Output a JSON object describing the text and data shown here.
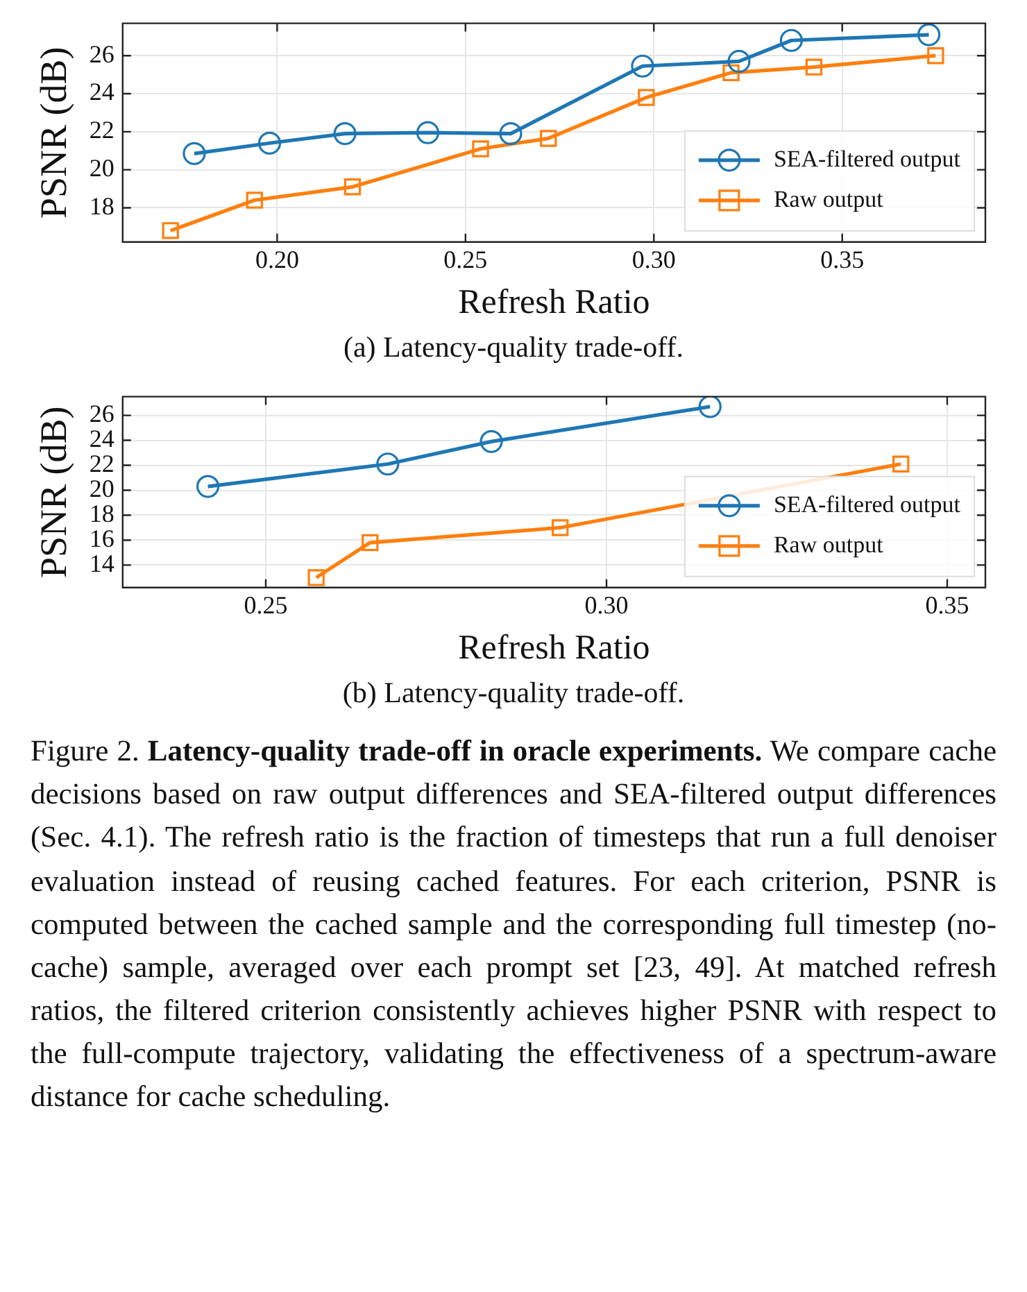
{
  "chart_data": [
    {
      "type": "line",
      "xlabel": "Refresh Ratio",
      "ylabel": "PSNR (dB)",
      "xlim": [
        0.159,
        0.388
      ],
      "ylim": [
        16.2,
        27.7
      ],
      "xticks": [
        {
          "value": 0.2,
          "label": "0.20"
        },
        {
          "value": 0.25,
          "label": "0.25"
        },
        {
          "value": 0.3,
          "label": "0.30"
        },
        {
          "value": 0.35,
          "label": "0.35"
        }
      ],
      "yticks": [
        18,
        20,
        22,
        24,
        26
      ],
      "grid": true,
      "legend": "bottom right",
      "line_style": "solid",
      "series": [
        {
          "name": "SEA-filtered output",
          "color": "#1f77b4",
          "marker": "circle",
          "x": [
            0.178,
            0.198,
            0.218,
            0.24,
            0.262,
            0.297,
            0.3226,
            0.3365,
            0.373
          ],
          "values": [
            20.85,
            21.4,
            21.9,
            21.95,
            21.9,
            25.45,
            25.7,
            26.8,
            27.1
          ]
        },
        {
          "name": "Raw output",
          "color": "#ff7f0e",
          "marker": "square",
          "x": [
            0.1717,
            0.194,
            0.22,
            0.254,
            0.272,
            0.298,
            0.3205,
            0.3425,
            0.3748
          ],
          "values": [
            16.8,
            18.4,
            19.1,
            21.1,
            21.65,
            23.8,
            25.1,
            25.4,
            26.0
          ]
        }
      ],
      "annotations": [
        "(a) Latency-quality trade-off."
      ]
    },
    {
      "type": "line",
      "xlabel": "Refresh Ratio",
      "ylabel": "PSNR (dB)",
      "xlim": [
        0.229,
        0.3556
      ],
      "ylim": [
        12.2,
        27.5
      ],
      "xticks": [
        {
          "value": 0.25,
          "label": "0.25"
        },
        {
          "value": 0.3,
          "label": "0.30"
        },
        {
          "value": 0.35,
          "label": "0.35"
        }
      ],
      "yticks": [
        14,
        16,
        18,
        20,
        22,
        24,
        26
      ],
      "grid": true,
      "legend": "bottom right",
      "line_style": "solid",
      "series": [
        {
          "name": "SEA-filtered output",
          "color": "#1f77b4",
          "marker": "circle",
          "x": [
            0.2415,
            0.2679,
            0.2831,
            0.3152
          ],
          "values": [
            20.3,
            22.1,
            23.9,
            26.7
          ]
        },
        {
          "name": "Raw output",
          "color": "#ff7f0e",
          "marker": "square",
          "x": [
            0.2574,
            0.2653,
            0.2932,
            0.3432
          ],
          "values": [
            13.0,
            15.8,
            17.0,
            22.1
          ]
        }
      ],
      "annotations": [
        "(b) Latency-quality trade-off.",
        "Figure 2.",
        "Latency-quality trade-off in oracle experiments.",
        "We compare cache decisions based on raw output differences and SEA-filtered output differences (Sec. 4.1). The refresh ratio is the fraction of timesteps that run a full denoiser evaluation instead of reusing cached features. For each criterion, PSNR is computed between the cached sample and the corresponding full timestep (no-cache) sample, averaged over each prompt set [23, 49]. At matched refresh ratios, the filtered criterion consistently achieves higher PSNR with respect to the full-compute trajectory, validating the effectiveness of a spectrum-aware distance for cache scheduling."
      ]
    }
  ]
}
